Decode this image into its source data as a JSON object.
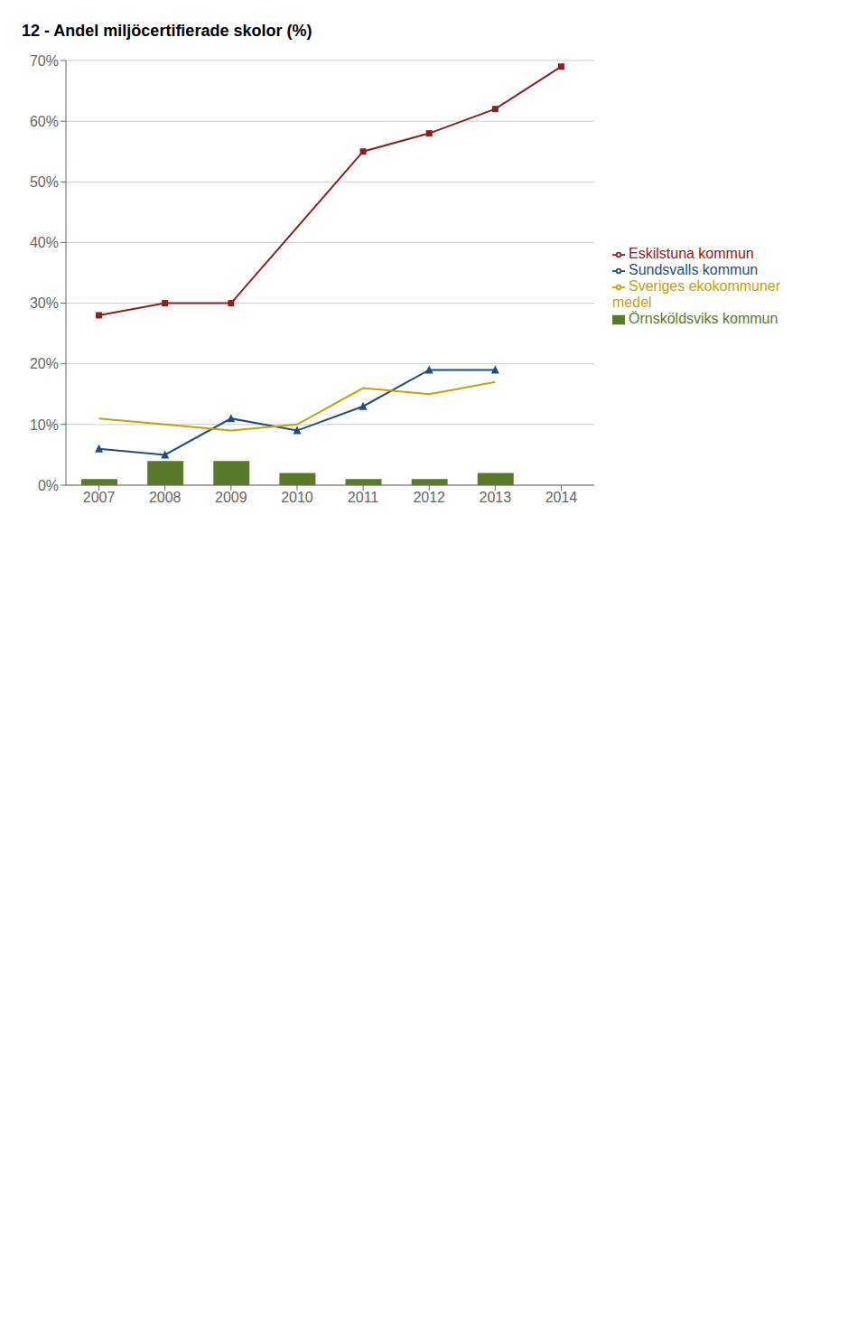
{
  "chart_data": {
    "type": "bar",
    "title": "12 - Andel miljöcertifierade skolor (%)",
    "categories": [
      "2007",
      "2008",
      "2009",
      "2010",
      "2011",
      "2012",
      "2013",
      "2014"
    ],
    "series": [
      {
        "name": "Örnsköldsviks kommun",
        "type": "bar",
        "color": "#5a7a29",
        "values": [
          0.01,
          0.04,
          0.04,
          0.02,
          0.01,
          0.01,
          0.02,
          null
        ]
      },
      {
        "name": "Eskilstuna kommun",
        "type": "line",
        "color": "#8B2020",
        "marker": "square",
        "values": [
          0.28,
          0.3,
          0.3,
          null,
          0.55,
          0.58,
          0.62,
          0.69
        ]
      },
      {
        "name": "Sundsvalls kommun",
        "type": "line",
        "color": "#1F4E79",
        "marker": "triangle",
        "values": [
          0.06,
          0.05,
          0.11,
          0.09,
          0.13,
          0.19,
          0.19,
          null
        ]
      },
      {
        "name": "Sveriges ekokommuner medel",
        "type": "line",
        "color": "#C8A000",
        "marker": "none",
        "values": [
          0.11,
          0.1,
          0.09,
          0.1,
          0.16,
          0.15,
          0.17,
          null
        ]
      }
    ],
    "ylim": [
      0,
      0.7
    ],
    "yticks": [
      {
        "value": 0.0,
        "label": "0%"
      },
      {
        "value": 0.1,
        "label": "10%"
      },
      {
        "value": 0.2,
        "label": "20%"
      },
      {
        "value": 0.3,
        "label": "30%"
      },
      {
        "value": 0.4,
        "label": "40%"
      },
      {
        "value": 0.5,
        "label": "50%"
      },
      {
        "value": 0.6,
        "label": "60%"
      },
      {
        "value": 0.7,
        "label": "70%"
      }
    ],
    "grid": true,
    "legend": "right"
  }
}
